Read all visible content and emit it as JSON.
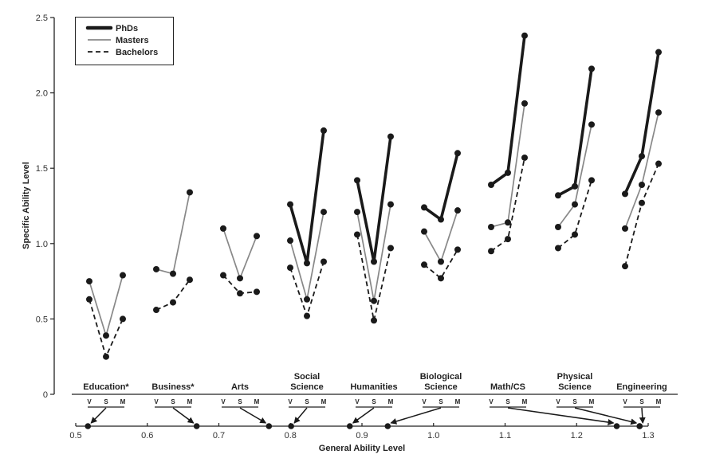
{
  "chart_data": {
    "type": "line",
    "ylabel": "Specific Ability Level",
    "xlabel": "General Ability Level",
    "ylim": [
      0,
      2.5
    ],
    "yticks": [
      "0",
      "0.5",
      "1.0",
      "1.5",
      "2.0",
      "2.5"
    ],
    "ytick_values": [
      0,
      0.5,
      1.0,
      1.5,
      2.0,
      2.5
    ],
    "xlim": [
      0.5,
      1.3
    ],
    "xticks": [
      "0.5",
      "0.6",
      "0.7",
      "0.8",
      "0.9",
      "1.0",
      "1.1",
      "1.2",
      "1.3"
    ],
    "xtick_values": [
      0.5,
      0.6,
      0.7,
      0.8,
      0.9,
      1.0,
      1.1,
      1.2,
      1.3
    ],
    "sub_categories": [
      "V",
      "S",
      "M"
    ],
    "legend": {
      "placement": "top-left",
      "entries": [
        {
          "key": "phd",
          "label": "PhDs"
        },
        {
          "key": "masters",
          "label": "Masters"
        },
        {
          "key": "bachelors",
          "label": "Bachelors"
        }
      ]
    },
    "colors": {
      "phd": "#1a1a1a",
      "masters": "#888888",
      "bachelors": "#1a1a1a",
      "marker": "#1a1a1a",
      "axis": "#222222"
    },
    "groups": [
      {
        "label": [
          "Education*"
        ],
        "general_ability": 0.517,
        "series": {
          "masters": [
            0.75,
            0.39,
            0.79
          ],
          "bachelors": [
            0.63,
            0.25,
            0.5
          ]
        }
      },
      {
        "label": [
          "Business*"
        ],
        "general_ability": 0.669,
        "series": {
          "masters": [
            0.83,
            0.8,
            1.34
          ],
          "bachelors": [
            0.56,
            0.61,
            0.76
          ]
        }
      },
      {
        "label": [
          "Arts"
        ],
        "general_ability": 0.77,
        "series": {
          "masters": [
            1.1,
            0.77,
            1.05
          ],
          "bachelors": [
            0.79,
            0.67,
            0.68
          ]
        }
      },
      {
        "label": [
          "Social",
          "Science"
        ],
        "general_ability": 0.801,
        "series": {
          "phd": [
            1.26,
            0.87,
            1.75
          ],
          "masters": [
            1.02,
            0.63,
            1.21
          ],
          "bachelors": [
            0.84,
            0.52,
            0.88
          ]
        }
      },
      {
        "label": [
          "Humanities"
        ],
        "general_ability": 0.883,
        "series": {
          "phd": [
            1.42,
            0.88,
            1.71
          ],
          "masters": [
            1.21,
            0.62,
            1.26
          ],
          "bachelors": [
            1.06,
            0.49,
            0.97
          ]
        }
      },
      {
        "label": [
          "Biological",
          "Science"
        ],
        "general_ability": 0.936,
        "series": {
          "phd": [
            1.24,
            1.16,
            1.6
          ],
          "masters": [
            1.08,
            0.88,
            1.22
          ],
          "bachelors": [
            0.86,
            0.77,
            0.96
          ]
        }
      },
      {
        "label": [
          "Math/CS"
        ],
        "general_ability": 1.256,
        "series": {
          "phd": [
            1.39,
            1.47,
            2.38
          ],
          "masters": [
            1.11,
            1.14,
            1.93
          ],
          "bachelors": [
            0.95,
            1.03,
            1.57
          ]
        }
      },
      {
        "label": [
          "Physical",
          "Science"
        ],
        "general_ability": 1.288,
        "series": {
          "phd": [
            1.32,
            1.38,
            2.16
          ],
          "masters": [
            1.11,
            1.26,
            1.79
          ],
          "bachelors": [
            0.97,
            1.06,
            1.42
          ]
        }
      },
      {
        "label": [
          "Engineering"
        ],
        "general_ability": 1.288,
        "series": {
          "phd": [
            1.33,
            1.58,
            2.27
          ],
          "masters": [
            1.1,
            1.39,
            1.87
          ],
          "bachelors": [
            0.85,
            1.27,
            1.53
          ]
        }
      }
    ]
  }
}
